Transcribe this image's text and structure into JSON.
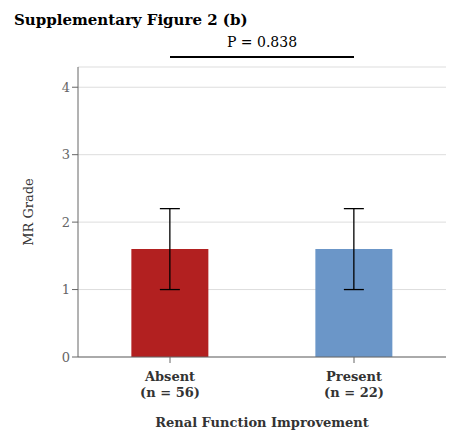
{
  "chart_data": {
    "type": "bar",
    "title": "Supplementary Figure 2 (b)",
    "categories": [
      "Absent\n(n = 56)",
      "Present\n(n = 22)"
    ],
    "values": [
      1.6,
      1.6
    ],
    "errors": [
      0.6,
      0.6
    ],
    "colors": [
      "#B22020",
      "#6B96C8"
    ],
    "ylabel": "MR Grade",
    "xlabel": "Renal Function Improvement",
    "ylim": [
      0,
      4.3
    ],
    "yticks": [
      0,
      1,
      2,
      3,
      4
    ],
    "grid": true,
    "annotation": "P = 0.838"
  }
}
